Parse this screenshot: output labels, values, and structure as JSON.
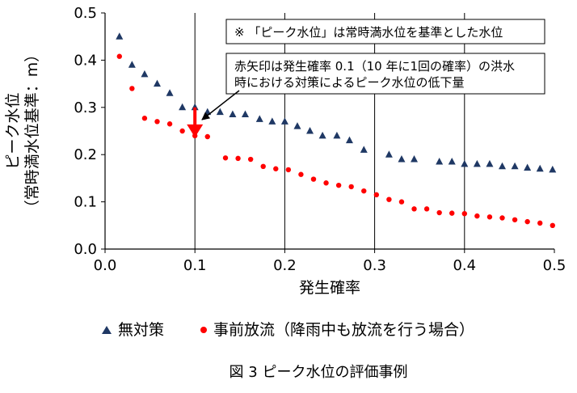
{
  "chart_data": {
    "type": "scatter",
    "caption": "図 3  ピーク水位の評価事例",
    "xlabel": "発生確率",
    "ylabel_line1": "ピーク水位",
    "ylabel_line2": "（常時満水位基準：m）",
    "xlim": [
      0.0,
      0.5
    ],
    "ylim": [
      0.0,
      0.5
    ],
    "x_ticks": [
      "0.0",
      "0.1",
      "0.2",
      "0.3",
      "0.4",
      "0.5"
    ],
    "y_ticks": [
      "0.0",
      "0.1",
      "0.2",
      "0.3",
      "0.4",
      "0.5"
    ],
    "grid": "vertical",
    "legend_position": "bottom",
    "colors": {
      "series1": "#1f3864",
      "series2": "#ff0000",
      "arrow": "#ff0000"
    },
    "notes": {
      "note1": "※ 「ピーク水位」は常時満水位を基準とした水位",
      "note2_line1": "赤矢印は発生確率 0.1（10 年に1回の確率）の洪水",
      "note2_line2": "時における対策によるピーク水位の低下量"
    },
    "reduction_arrow": {
      "x": 0.1,
      "y_from": 0.3,
      "y_to": 0.24
    },
    "series": [
      {
        "name": "無対策",
        "marker": "triangle",
        "points": [
          [
            0.016,
            0.45
          ],
          [
            0.03,
            0.39
          ],
          [
            0.044,
            0.37
          ],
          [
            0.058,
            0.35
          ],
          [
            0.072,
            0.33
          ],
          [
            0.086,
            0.3
          ],
          [
            0.1,
            0.3
          ],
          [
            0.114,
            0.29
          ],
          [
            0.128,
            0.29
          ],
          [
            0.142,
            0.285
          ],
          [
            0.156,
            0.285
          ],
          [
            0.172,
            0.275
          ],
          [
            0.186,
            0.27
          ],
          [
            0.2,
            0.27
          ],
          [
            0.214,
            0.26
          ],
          [
            0.228,
            0.25
          ],
          [
            0.242,
            0.24
          ],
          [
            0.258,
            0.24
          ],
          [
            0.272,
            0.23
          ],
          [
            0.288,
            0.21
          ],
          [
            0.316,
            0.2
          ],
          [
            0.33,
            0.19
          ],
          [
            0.344,
            0.19
          ],
          [
            0.372,
            0.185
          ],
          [
            0.386,
            0.185
          ],
          [
            0.4,
            0.18
          ],
          [
            0.414,
            0.18
          ],
          [
            0.428,
            0.18
          ],
          [
            0.442,
            0.175
          ],
          [
            0.456,
            0.175
          ],
          [
            0.47,
            0.172
          ],
          [
            0.484,
            0.17
          ],
          [
            0.498,
            0.168
          ]
        ]
      },
      {
        "name": "事前放流（降雨中も放流を行う場合）",
        "marker": "circle",
        "points": [
          [
            0.016,
            0.408
          ],
          [
            0.03,
            0.34
          ],
          [
            0.044,
            0.277
          ],
          [
            0.058,
            0.27
          ],
          [
            0.072,
            0.265
          ],
          [
            0.086,
            0.25
          ],
          [
            0.1,
            0.24
          ],
          [
            0.114,
            0.238
          ],
          [
            0.134,
            0.193
          ],
          [
            0.148,
            0.192
          ],
          [
            0.162,
            0.19
          ],
          [
            0.176,
            0.175
          ],
          [
            0.19,
            0.17
          ],
          [
            0.204,
            0.168
          ],
          [
            0.218,
            0.158
          ],
          [
            0.232,
            0.148
          ],
          [
            0.246,
            0.14
          ],
          [
            0.26,
            0.135
          ],
          [
            0.274,
            0.132
          ],
          [
            0.288,
            0.123
          ],
          [
            0.302,
            0.115
          ],
          [
            0.316,
            0.105
          ],
          [
            0.33,
            0.1
          ],
          [
            0.344,
            0.085
          ],
          [
            0.358,
            0.085
          ],
          [
            0.372,
            0.077
          ],
          [
            0.386,
            0.076
          ],
          [
            0.4,
            0.075
          ],
          [
            0.414,
            0.07
          ],
          [
            0.428,
            0.068
          ],
          [
            0.442,
            0.066
          ],
          [
            0.456,
            0.062
          ],
          [
            0.47,
            0.058
          ],
          [
            0.484,
            0.055
          ],
          [
            0.498,
            0.05
          ]
        ]
      }
    ]
  }
}
